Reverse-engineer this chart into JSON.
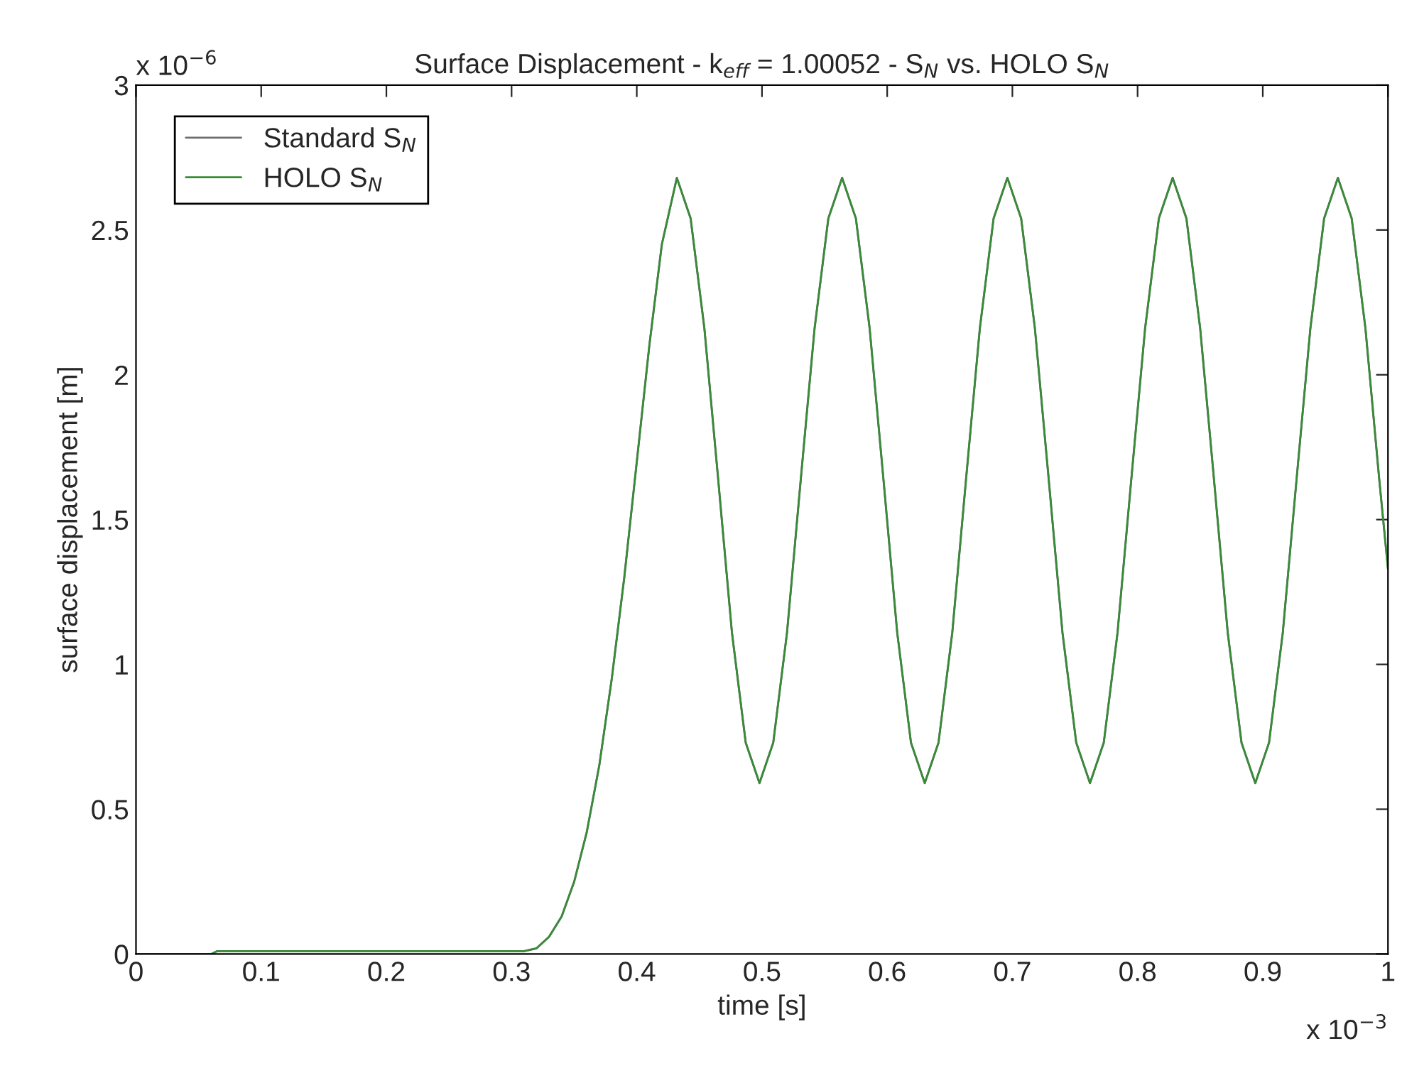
{
  "chart_data": {
    "type": "line",
    "title": "Surface Displacement - k$_{eff}$ = 1.00052 - S$_{N}$ vs. HOLO S$_{N}$",
    "xlabel": "time [s]",
    "ylabel": "surface displacement [m]",
    "annotations": [
      "x 10$^{−6}$",
      "x 10$^{−3}$"
    ],
    "x": [
      0,
      0.06,
      0.065,
      0.31,
      0.32,
      0.33,
      0.34,
      0.35,
      0.36,
      0.37,
      0.38,
      0.39,
      0.4,
      0.41,
      0.42,
      0.432,
      0.443,
      0.454,
      0.465,
      0.476,
      0.487,
      0.498,
      0.509,
      0.52,
      0.531,
      0.542,
      0.553,
      0.564,
      0.575,
      0.586,
      0.597,
      0.608,
      0.619,
      0.63,
      0.641,
      0.652,
      0.663,
      0.674,
      0.685,
      0.696,
      0.707,
      0.718,
      0.729,
      0.74,
      0.751,
      0.762,
      0.773,
      0.784,
      0.795,
      0.806,
      0.817,
      0.828,
      0.839,
      0.85,
      0.861,
      0.872,
      0.883,
      0.894,
      0.905,
      0.916,
      0.927,
      0.938,
      0.949,
      0.96,
      0.971,
      0.982,
      0.993,
      1.0
    ],
    "series": [
      {
        "name": "Standard S$_{N}$",
        "color": "#6e6e6e",
        "values": [
          0,
          0,
          0.01,
          0.01,
          0.02,
          0.06,
          0.13,
          0.25,
          0.42,
          0.65,
          0.95,
          1.3,
          1.7,
          2.1,
          2.45,
          2.68,
          2.54,
          2.16,
          1.64,
          1.11,
          0.73,
          0.59,
          0.73,
          1.11,
          1.64,
          2.16,
          2.54,
          2.68,
          2.54,
          2.16,
          1.64,
          1.11,
          0.73,
          0.59,
          0.73,
          1.11,
          1.64,
          2.16,
          2.54,
          2.68,
          2.54,
          2.16,
          1.64,
          1.11,
          0.73,
          0.59,
          0.73,
          1.11,
          1.64,
          2.16,
          2.54,
          2.68,
          2.54,
          2.16,
          1.64,
          1.11,
          0.73,
          0.59,
          0.73,
          1.11,
          1.64,
          2.16,
          2.54,
          2.68,
          2.54,
          2.16,
          1.64,
          1.33
        ]
      },
      {
        "name": "HOLO S$_{N}$",
        "color": "#3a8a3a",
        "values": [
          0,
          0,
          0.01,
          0.01,
          0.02,
          0.06,
          0.13,
          0.25,
          0.42,
          0.65,
          0.95,
          1.3,
          1.7,
          2.1,
          2.45,
          2.68,
          2.54,
          2.16,
          1.64,
          1.11,
          0.73,
          0.59,
          0.73,
          1.11,
          1.64,
          2.16,
          2.54,
          2.68,
          2.54,
          2.16,
          1.64,
          1.11,
          0.73,
          0.59,
          0.73,
          1.11,
          1.64,
          2.16,
          2.54,
          2.68,
          2.54,
          2.16,
          1.64,
          1.11,
          0.73,
          0.59,
          0.73,
          1.11,
          1.64,
          2.16,
          2.54,
          2.68,
          2.54,
          2.16,
          1.64,
          1.11,
          0.73,
          0.59,
          0.73,
          1.11,
          1.64,
          2.16,
          2.54,
          2.68,
          2.54,
          2.16,
          1.64,
          1.33
        ]
      }
    ],
    "xlim": [
      0,
      1
    ],
    "ylim": [
      0,
      3
    ],
    "xticks": [
      0,
      0.1,
      0.2,
      0.3,
      0.4,
      0.5,
      0.6,
      0.7,
      0.8,
      0.9,
      1
    ],
    "yticks": [
      0,
      0.5,
      1,
      1.5,
      2,
      2.5,
      3
    ],
    "legend": "top left",
    "grid": false,
    "marker": "none",
    "line_style": "solid"
  }
}
